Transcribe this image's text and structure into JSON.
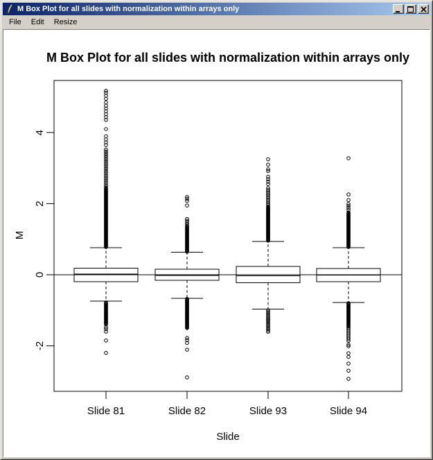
{
  "window": {
    "title": "M Box Plot for all slides with normalization within arrays only",
    "icons": {
      "app": "feather-quill-icon",
      "minimize": "_",
      "maximize": "[ ]",
      "close": "x"
    }
  },
  "menu": {
    "items": [
      "File",
      "Edit",
      "Resize"
    ]
  },
  "colors": {
    "titlebar_left": "#0a246a",
    "titlebar_right": "#a6caf0",
    "chrome": "#d4d0c8",
    "plot_background": "#ffffff",
    "ink": "#000000"
  },
  "chart_data": {
    "type": "boxplot",
    "title": "M Box Plot for all slides with normalization within arrays only",
    "xlabel": "Slide",
    "ylabel": "M",
    "y_ticks": [
      4,
      2,
      0,
      -2
    ],
    "ylim": [
      -3.28,
      5.47
    ],
    "reference_line_y": 0,
    "grid": false,
    "categories": [
      "Slide 81",
      "Slide 82",
      "Slide 93",
      "Slide 94"
    ],
    "boxes": [
      {
        "label": "Slide 81",
        "q1": -0.2,
        "median": 0.02,
        "q3": 0.19,
        "whisker_low": -0.74,
        "whisker_high": 0.76,
        "outlier_runs": [
          [
            0.78,
            2.45,
            0.018
          ],
          [
            2.48,
            3.55,
            0.055
          ],
          [
            -0.78,
            -1.42,
            0.02
          ]
        ],
        "outlier_points": [
          3.65,
          3.73,
          3.81,
          3.9,
          4.1,
          4.36,
          4.44,
          4.52,
          4.6,
          4.68,
          4.76,
          4.85,
          4.95,
          5.04,
          5.12,
          5.18,
          -1.48,
          -1.53,
          -1.6,
          -1.85,
          -2.2
        ]
      },
      {
        "label": "Slide 82",
        "q1": -0.16,
        "median": -0.02,
        "q3": 0.16,
        "whisker_low": -0.66,
        "whisker_high": 0.63,
        "outlier_runs": [
          [
            0.65,
            1.38,
            0.02
          ],
          [
            -0.68,
            -1.5,
            0.02
          ]
        ],
        "outlier_points": [
          1.42,
          1.47,
          1.52,
          1.57,
          1.95,
          2.08,
          2.14,
          2.19,
          -1.78,
          -1.84,
          -1.92,
          -2.11,
          -2.89
        ]
      },
      {
        "label": "Slide 93",
        "q1": -0.22,
        "median": -0.03,
        "q3": 0.23,
        "whisker_low": -0.97,
        "whisker_high": 0.94,
        "outlier_runs": [
          [
            0.96,
            1.92,
            0.018
          ],
          [
            1.96,
            2.44,
            0.048
          ],
          [
            -1.0,
            -1.62,
            0.038
          ]
        ],
        "outlier_points": [
          2.55,
          2.62,
          2.69,
          2.76,
          2.92,
          2.97,
          3.1,
          3.25,
          -1.27
        ]
      },
      {
        "label": "Slide 94",
        "q1": -0.2,
        "median": -0.01,
        "q3": 0.18,
        "whisker_low": -0.78,
        "whisker_high": 0.76,
        "outlier_runs": [
          [
            0.78,
            1.76,
            0.018
          ],
          [
            -0.8,
            -1.48,
            0.02
          ],
          [
            -1.5,
            -1.86,
            0.045
          ]
        ],
        "outlier_points": [
          1.82,
          1.88,
          1.94,
          1.99,
          2.1,
          2.26,
          3.28,
          -1.97,
          -2.01,
          -2.21,
          -2.31,
          -2.5,
          -2.7,
          -2.93
        ]
      }
    ]
  }
}
